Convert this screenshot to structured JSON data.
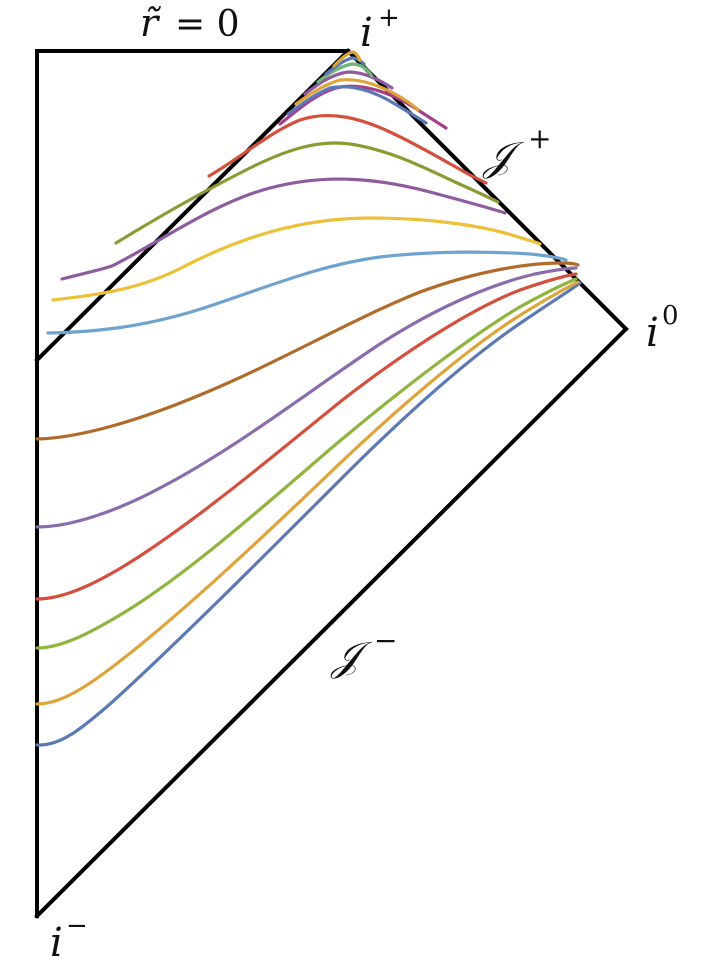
{
  "labels": {
    "r_tilde": "r̃",
    "equals_zero": "= 0",
    "i": "i",
    "plus": "+",
    "minus": "−",
    "zero": "0",
    "scri": "𝒥"
  },
  "colors": {
    "border": "#000000",
    "blue": "#5b79b7",
    "orange": "#dea43a",
    "green": "#8fb53e",
    "red": "#d4503c",
    "purple": "#8a6bab",
    "brown": "#b06a2a",
    "lightblue": "#6fa3cf",
    "yellow": "#ecc138",
    "olive": "#8d9a34",
    "violet": "#8e5c9e",
    "magenta": "#a63d8c",
    "teal_green": "#6fb478"
  },
  "curve_families": {
    "before_horizon": [
      "blue",
      "orange",
      "green",
      "red",
      "purple",
      "brown"
    ],
    "after_horizon": [
      "lightblue",
      "yellow",
      "violet",
      "olive",
      "red",
      "magenta",
      "blue",
      "orange",
      "teal_green"
    ]
  }
}
